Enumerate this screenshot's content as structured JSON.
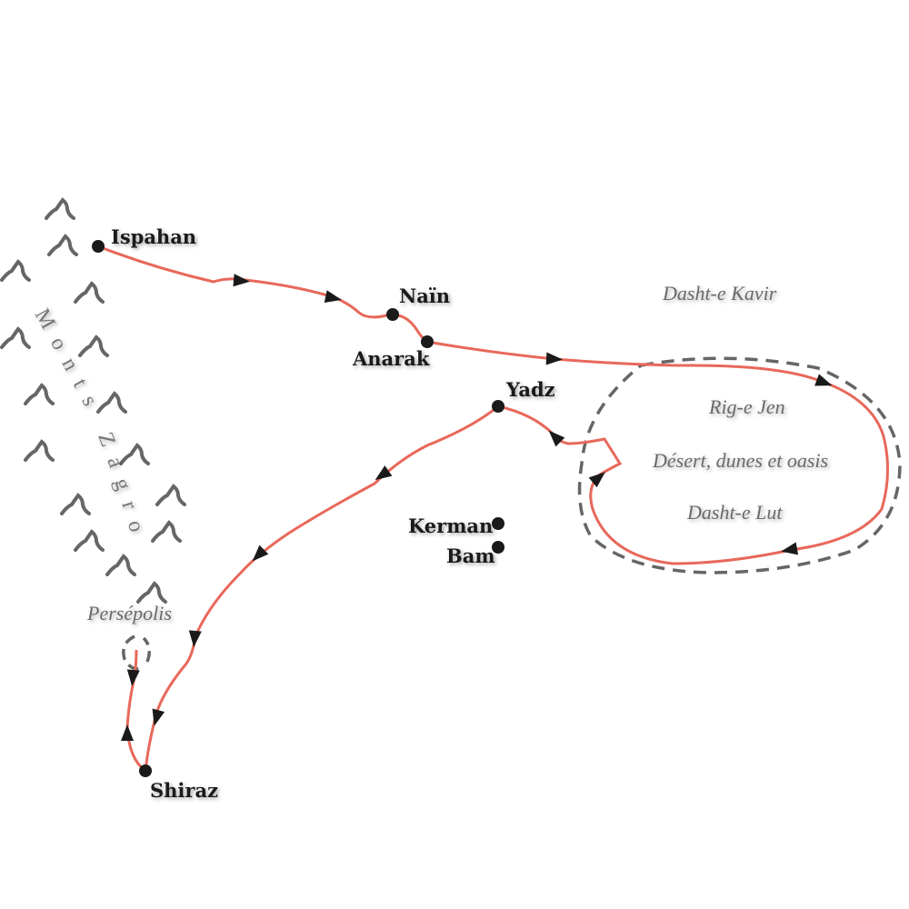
{
  "colors": {
    "route": "#e8685a",
    "city_dot": "#1a1a1a",
    "boundary": "#666666",
    "mountain": "#666666",
    "region_text": "#6a6a6a"
  },
  "cities": [
    {
      "name": "Ispahan"
    },
    {
      "name": "Naïn"
    },
    {
      "name": "Anarak"
    },
    {
      "name": "Yadz"
    },
    {
      "name": "Kerman"
    },
    {
      "name": "Bam"
    },
    {
      "name": "Shiraz"
    }
  ],
  "regions": {
    "kavir": "Dasht-e Kavir",
    "rig": "Rig-e Jen",
    "desert": "Désert, dunes et oasis",
    "lut": "Dasht-e Lut",
    "persepolis": "Persépolis",
    "mountains": "Monts Zagros"
  },
  "icons": {
    "mountain": "mountain-icon",
    "arrow": "direction-arrow-icon",
    "city": "city-dot-icon"
  }
}
